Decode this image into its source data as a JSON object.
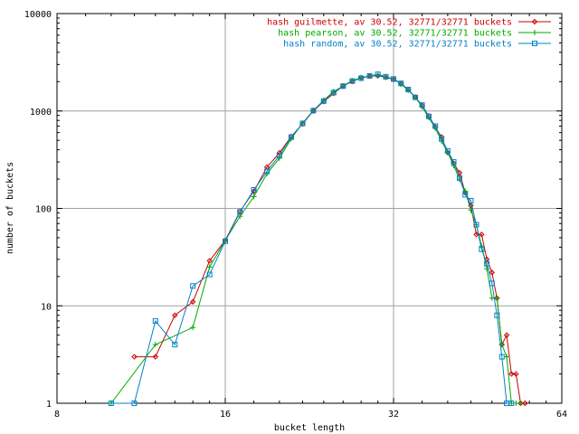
{
  "chart_data": {
    "type": "line",
    "title": "",
    "xlabel": "bucket length",
    "ylabel": "number of buckets",
    "x_scale": "log2",
    "y_scale": "log10",
    "xlim": [
      8,
      64
    ],
    "ylim": [
      1,
      10000
    ],
    "x_ticks": [
      8,
      16,
      32,
      64
    ],
    "y_ticks": [
      1,
      10,
      100,
      1000,
      10000
    ],
    "grid": true,
    "legend_position": "top-right",
    "series": [
      {
        "name": "hash guilmette, av 30.52, 32771/32771 buckets",
        "color": "#cc0000",
        "marker": "diamond",
        "points": [
          [
            11,
            3
          ],
          [
            12,
            3
          ],
          [
            13,
            8
          ],
          [
            14,
            11
          ],
          [
            15,
            29
          ],
          [
            16,
            47
          ],
          [
            17,
            93
          ],
          [
            18,
            150
          ],
          [
            19,
            265
          ],
          [
            20,
            372
          ],
          [
            21,
            547
          ],
          [
            22,
            736
          ],
          [
            23,
            1003
          ],
          [
            24,
            1250
          ],
          [
            25,
            1515
          ],
          [
            26,
            1808
          ],
          [
            27,
            2009
          ],
          [
            28,
            2194
          ],
          [
            29,
            2278
          ],
          [
            30,
            2300
          ],
          [
            31,
            2215
          ],
          [
            32,
            2113
          ],
          [
            33,
            1910
          ],
          [
            34,
            1650
          ],
          [
            35,
            1389
          ],
          [
            36,
            1137
          ],
          [
            37,
            890
          ],
          [
            38,
            684
          ],
          [
            39,
            540
          ],
          [
            40,
            375
          ],
          [
            41,
            290
          ],
          [
            42,
            232
          ],
          [
            43,
            145
          ],
          [
            44,
            107
          ],
          [
            45,
            54
          ],
          [
            46,
            54
          ],
          [
            47,
            30
          ],
          [
            48,
            22
          ],
          [
            49,
            12
          ],
          [
            50,
            4
          ],
          [
            51,
            5
          ],
          [
            52,
            2
          ],
          [
            53,
            2
          ],
          [
            54,
            1
          ],
          [
            55,
            1
          ]
        ]
      },
      {
        "name": "hash pearson, av 30.52, 32771/32771 buckets",
        "color": "#00aa00",
        "marker": "plus",
        "points": [
          [
            10,
            1
          ],
          [
            12,
            4
          ],
          [
            14,
            6
          ],
          [
            15,
            25
          ],
          [
            16,
            47
          ],
          [
            17,
            83
          ],
          [
            18,
            132
          ],
          [
            19,
            227
          ],
          [
            20,
            328
          ],
          [
            21,
            520
          ],
          [
            22,
            750
          ],
          [
            23,
            1012
          ],
          [
            24,
            1290
          ],
          [
            25,
            1585
          ],
          [
            26,
            1804
          ],
          [
            27,
            2050
          ],
          [
            28,
            2200
          ],
          [
            29,
            2290
          ],
          [
            30,
            2320
          ],
          [
            31,
            2235
          ],
          [
            32,
            2137
          ],
          [
            33,
            1880
          ],
          [
            34,
            1640
          ],
          [
            35,
            1385
          ],
          [
            36,
            1100
          ],
          [
            37,
            855
          ],
          [
            38,
            668
          ],
          [
            39,
            490
          ],
          [
            40,
            375
          ],
          [
            41,
            275
          ],
          [
            42,
            200
          ],
          [
            43,
            150
          ],
          [
            44,
            96
          ],
          [
            45,
            68
          ],
          [
            46,
            41
          ],
          [
            47,
            24
          ],
          [
            48,
            12
          ],
          [
            49,
            12
          ],
          [
            50,
            4
          ],
          [
            51,
            3
          ],
          [
            52,
            1
          ],
          [
            53,
            1
          ],
          [
            54,
            1
          ]
        ]
      },
      {
        "name": "hash random, av 30.52, 32771/32771 buckets",
        "color": "#0080cc",
        "marker": "square",
        "points": [
          [
            10,
            1
          ],
          [
            11,
            1
          ],
          [
            12,
            7
          ],
          [
            13,
            4
          ],
          [
            14,
            16
          ],
          [
            15,
            21
          ],
          [
            16,
            46
          ],
          [
            17,
            92
          ],
          [
            18,
            155
          ],
          [
            19,
            240
          ],
          [
            20,
            350
          ],
          [
            21,
            540
          ],
          [
            22,
            745
          ],
          [
            23,
            1010
          ],
          [
            24,
            1265
          ],
          [
            25,
            1545
          ],
          [
            26,
            1798
          ],
          [
            27,
            2030
          ],
          [
            28,
            2170
          ],
          [
            29,
            2290
          ],
          [
            30,
            2380
          ],
          [
            31,
            2248
          ],
          [
            32,
            2130
          ],
          [
            33,
            1920
          ],
          [
            34,
            1660
          ],
          [
            35,
            1380
          ],
          [
            36,
            1150
          ],
          [
            37,
            880
          ],
          [
            38,
            700
          ],
          [
            39,
            520
          ],
          [
            40,
            390
          ],
          [
            41,
            300
          ],
          [
            42,
            205
          ],
          [
            43,
            138
          ],
          [
            44,
            120
          ],
          [
            45,
            68
          ],
          [
            46,
            38
          ],
          [
            47,
            27
          ],
          [
            48,
            17
          ],
          [
            49,
            8
          ],
          [
            50,
            3
          ],
          [
            51,
            1
          ],
          [
            52,
            1
          ]
        ]
      }
    ]
  }
}
